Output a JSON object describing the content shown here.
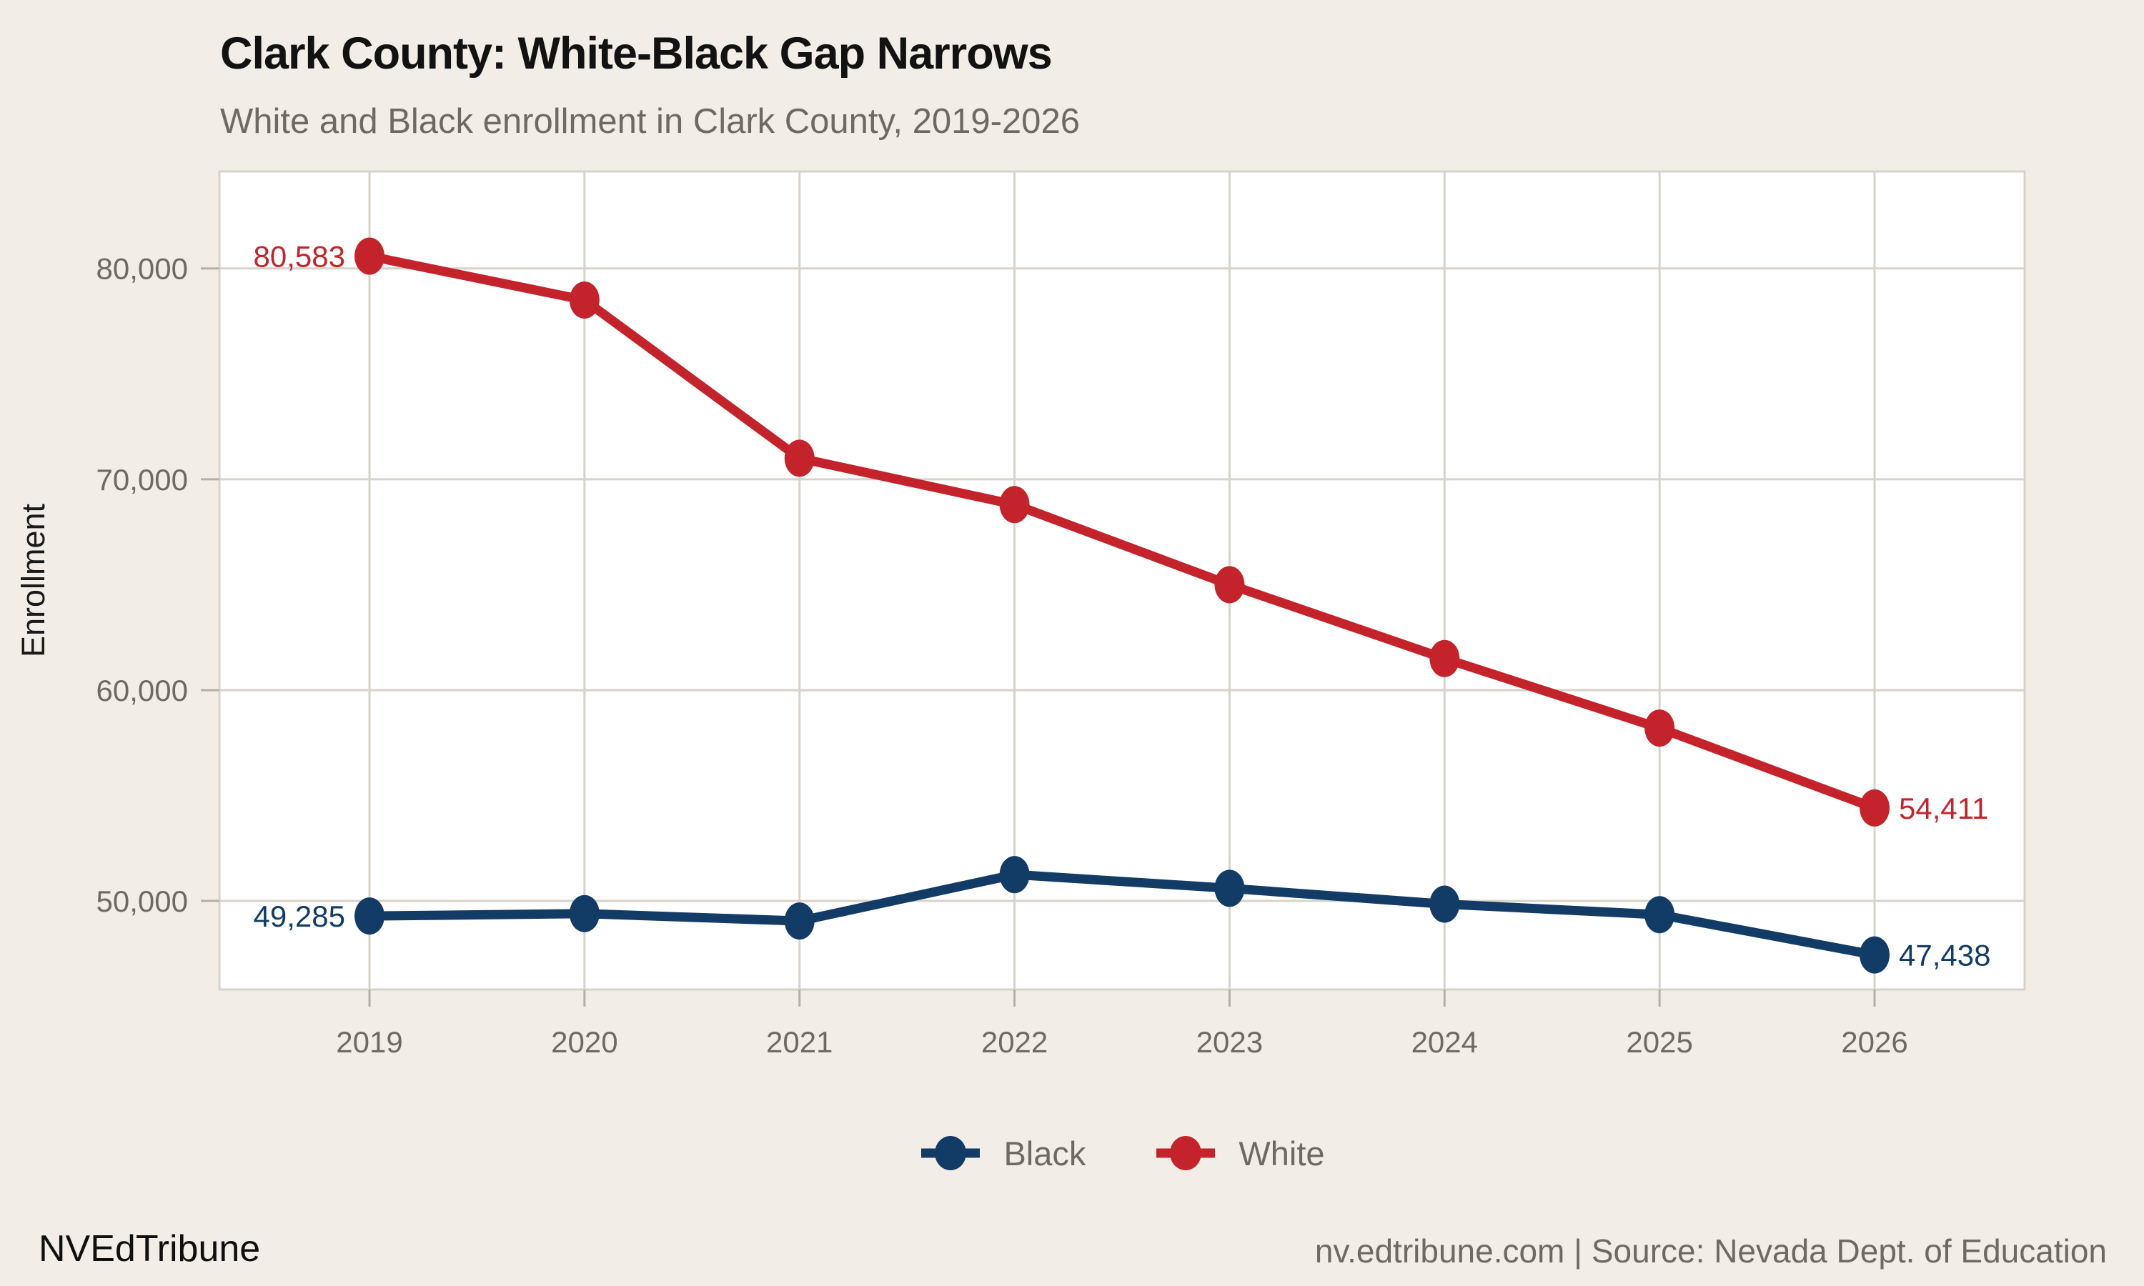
{
  "header": {
    "title": "Clark County: White-Black Gap Narrows",
    "subtitle": "White and Black enrollment in Clark County, 2019-2026"
  },
  "footer": {
    "brand": "NVEdTribune",
    "source": "nv.edtribune.com | Source: Nevada Dept. of Education"
  },
  "colors": {
    "background": "#f2eee7",
    "plot_background": "#ffffff",
    "grid": "#d7d3ca",
    "tick": "#b5b0a6",
    "text_gray": "#6e6a63",
    "black_series": "#123b65",
    "white_series": "#c5232b"
  },
  "chart_data": {
    "type": "line",
    "title": "Clark County: White-Black Gap Narrows",
    "subtitle": "White and Black enrollment in Clark County, 2019-2026",
    "xlabel": "",
    "ylabel": "Enrollment",
    "x": [
      2019,
      2020,
      2021,
      2022,
      2023,
      2024,
      2025,
      2026
    ],
    "series": [
      {
        "name": "Black",
        "color": "#123b65",
        "values": [
          49285,
          49400,
          49050,
          51250,
          50600,
          49850,
          49350,
          47438
        ]
      },
      {
        "name": "White",
        "color": "#c5232b",
        "values": [
          80583,
          78500,
          71000,
          68800,
          65000,
          61500,
          58200,
          54411
        ]
      }
    ],
    "labeled_values": {
      "black_first": "49,285",
      "black_last": "47,438",
      "white_first": "80,583",
      "white_last": "54,411"
    },
    "yticks": [
      50000,
      60000,
      70000,
      80000
    ],
    "ylim": [
      45800,
      84600
    ],
    "grid": true,
    "legend_position": "bottom"
  }
}
